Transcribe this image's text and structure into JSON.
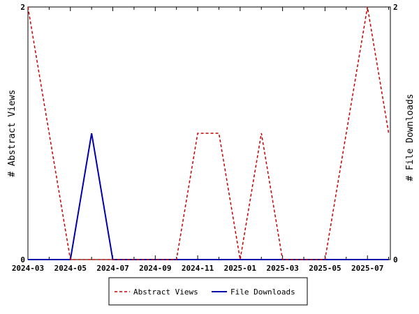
{
  "chart_data": {
    "type": "line",
    "title": "",
    "x_dates": [
      "2024-03",
      "2024-04",
      "2024-05",
      "2024-06",
      "2024-07",
      "2024-08",
      "2024-09",
      "2024-10",
      "2024-11",
      "2024-12",
      "2025-01",
      "2025-02",
      "2025-03",
      "2025-04",
      "2025-05",
      "2025-06",
      "2025-07",
      "2025-08"
    ],
    "x_tick_labels": [
      "2024-03",
      "2024-05",
      "2024-07",
      "2024-09",
      "2024-11",
      "2025-01",
      "2025-03",
      "2025-05",
      "2025-07"
    ],
    "y_left": {
      "label": "# Abstract Views",
      "range": [
        0,
        2
      ],
      "tick_labels": [
        "0",
        "2"
      ]
    },
    "y_right": {
      "label": "# File Downloads",
      "range": [
        0,
        2
      ],
      "tick_labels": [
        "0",
        "2"
      ]
    },
    "series": [
      {
        "name": "Abstract Views",
        "axis": "left",
        "color": "#cc0000",
        "dash": "dashed",
        "values": [
          2,
          1,
          0,
          0,
          0,
          0,
          0,
          0,
          1,
          1,
          0,
          1,
          0,
          0,
          0,
          1,
          2,
          1
        ]
      },
      {
        "name": "File Downloads",
        "axis": "right",
        "color": "#0000aa",
        "dash": "solid",
        "values": [
          0,
          0,
          0,
          1,
          0,
          0,
          0,
          0,
          0,
          0,
          0,
          0,
          0,
          0,
          0,
          0,
          0,
          0
        ]
      }
    ],
    "grid": false,
    "legend_position": "bottom"
  }
}
